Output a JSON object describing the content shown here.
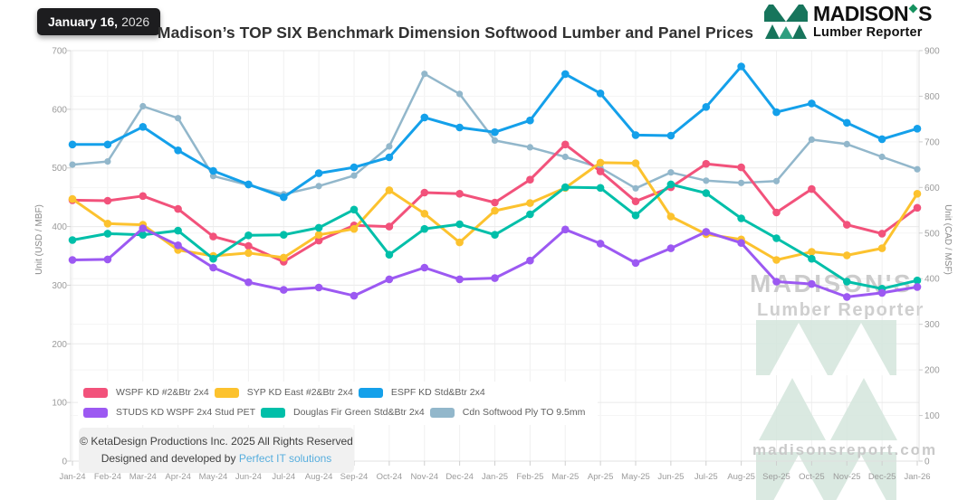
{
  "header": {
    "date_badge": {
      "date": "January 16,",
      "year": "2026"
    },
    "title": "Madison’s TOP SIX Benchmark Dimension Softwood Lumber and Panel Prices",
    "logo": {
      "name": "MADISON",
      "name_suffix": "S",
      "subtitle": "Lumber Reporter"
    }
  },
  "watermark": {
    "brand": "MADISON'S",
    "brand_sub": "Lumber Reporter",
    "site": "madisonsreport.com"
  },
  "footer": {
    "copyright": "© KetaDesign Productions Inc. 2025 All Rights Reserved",
    "credit_prefix": "Designed and developed by",
    "credit_link": "Perfect IT solutions"
  },
  "chart_data": {
    "type": "line",
    "title": "Madison’s TOP SIX Benchmark Dimension Softwood Lumber and Panel Prices",
    "x": [
      "Jan-24",
      "Feb-24",
      "Mar-24",
      "Apr-24",
      "May-24",
      "Jun-24",
      "Jul-24",
      "Aug-24",
      "Sep-24",
      "Oct-24",
      "Nov-24",
      "Dec-24",
      "Jan-25",
      "Feb-25",
      "Mar-25",
      "Apr-25",
      "May-25",
      "Jun-25",
      "Jul-25",
      "Aug-25",
      "Sep-25",
      "Oct-25",
      "Nov-25",
      "Dec-25",
      "Jan-26"
    ],
    "left_axis": {
      "label": "Unit (USD / MBF)",
      "min": 0,
      "max": 700,
      "step": 100
    },
    "right_axis": {
      "label": "Unit (CAD / MSF)",
      "min": 0,
      "max": 900,
      "step": 100
    },
    "grid": true,
    "legend_position": "bottom-left",
    "series": [
      {
        "name": "WSPF KD #2&Btr 2x4",
        "color": "#F2527B",
        "axis": "left",
        "values": [
          445,
          444,
          452,
          430,
          383,
          367,
          340,
          376,
          402,
          400,
          458,
          456,
          441,
          480,
          540,
          494,
          443,
          467,
          507,
          501,
          424,
          464,
          403,
          388,
          432
        ]
      },
      {
        "name": "SYP KD East #2&Btr 2x4",
        "color": "#FCC22E",
        "axis": "left",
        "values": [
          447,
          405,
          403,
          360,
          350,
          355,
          347,
          386,
          396,
          462,
          422,
          373,
          427,
          440,
          466,
          509,
          508,
          417,
          387,
          378,
          343,
          357,
          351,
          363,
          456
        ]
      },
      {
        "name": "ESPF KD Std&Btr 2x4",
        "color": "#14A0EA",
        "axis": "left",
        "values": [
          540,
          540,
          570,
          530,
          495,
          472,
          450,
          491,
          501,
          518,
          586,
          569,
          561,
          581,
          660,
          627,
          556,
          555,
          604,
          673,
          595,
          610,
          577,
          549,
          567
        ]
      },
      {
        "name": "STUDS KD WSPF 2x4 Stud PET",
        "color": "#9C59F2",
        "axis": "left",
        "values": [
          343,
          344,
          397,
          368,
          330,
          305,
          292,
          296,
          282,
          310,
          330,
          310,
          312,
          342,
          395,
          371,
          338,
          363,
          391,
          372,
          306,
          302,
          280,
          287,
          297
        ]
      },
      {
        "name": "Douglas Fir Green Std&Btr 2x4",
        "color": "#00BFA9",
        "axis": "left",
        "values": [
          377,
          388,
          386,
          393,
          345,
          385,
          386,
          398,
          429,
          352,
          396,
          404,
          386,
          421,
          467,
          466,
          419,
          472,
          457,
          414,
          380,
          345,
          306,
          294,
          308
        ]
      },
      {
        "name": "Cdn Softwood Ply TO 9.5mm",
        "color": "#92B7CB",
        "axis": "right",
        "values": [
          650,
          657,
          778,
          752,
          625,
          605,
          585,
          603,
          626,
          690,
          849,
          805,
          703,
          688,
          667,
          643,
          598,
          633,
          615,
          610,
          614,
          705,
          695,
          667,
          640
        ]
      }
    ]
  }
}
